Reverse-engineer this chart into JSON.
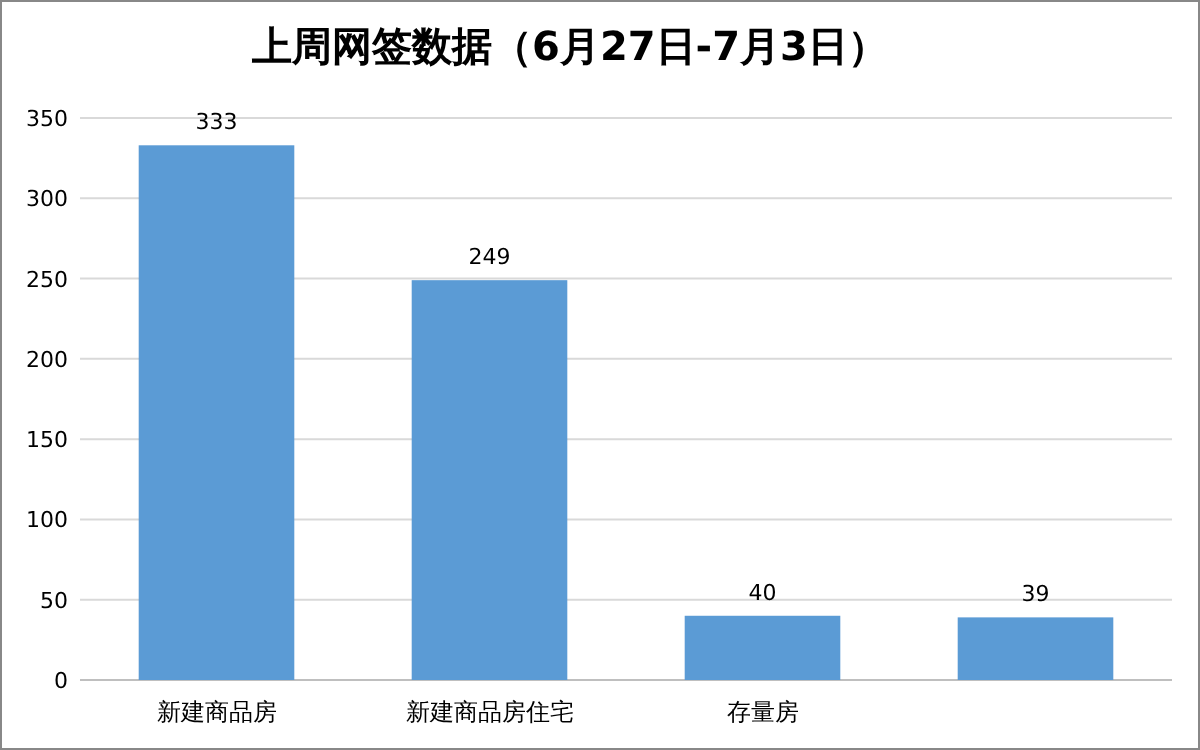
{
  "chart_data": {
    "type": "bar",
    "title": "上周网签数据（6月27日-7月3日）",
    "categories": [
      "新建商品房",
      "新建商品房住宅",
      "存量房",
      null
    ],
    "values": [
      333,
      249,
      40,
      39
    ],
    "color": "#5b9bd5",
    "ylim": [
      0,
      350
    ],
    "yticks": [
      0,
      50,
      100,
      150,
      200,
      250,
      300,
      350
    ],
    "grid": "y",
    "data_labels": true
  }
}
